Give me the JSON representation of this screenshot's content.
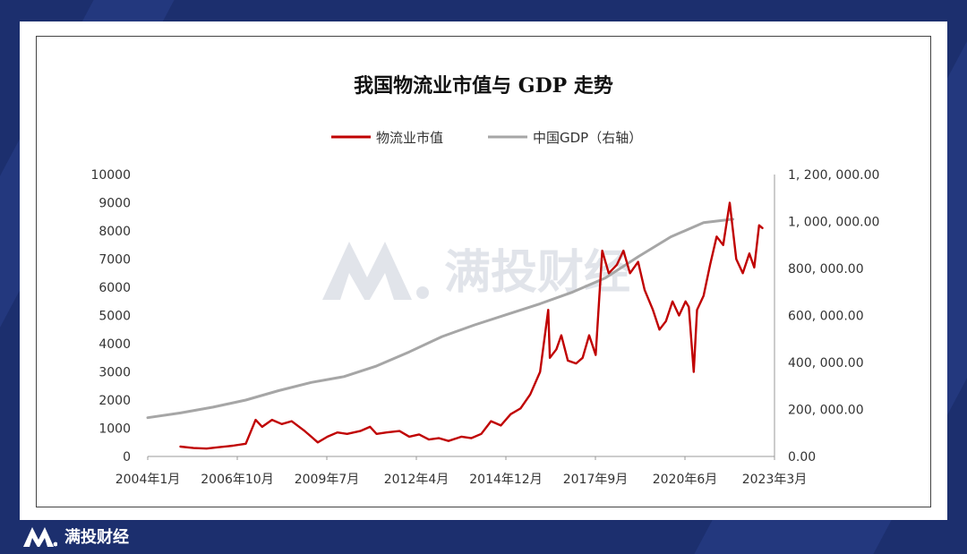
{
  "watermark": {
    "brand": "满投财经"
  },
  "footer": {
    "brand": "满投财经"
  },
  "chart_data": {
    "type": "line",
    "title": "我国物流业市值与 GDP 走势",
    "legend": {
      "placement": "top-center"
    },
    "x_tick_labels": [
      "2004年1月",
      "2006年10月",
      "2009年7月",
      "2012年4月",
      "2014年12月",
      "2017年9月",
      "2020年6月",
      "2023年3月"
    ],
    "x_range": [
      2004.0,
      2023.17
    ],
    "y_left": {
      "range": [
        0,
        10000
      ],
      "tick_labels": [
        "0",
        "1000",
        "2000",
        "3000",
        "4000",
        "5000",
        "6000",
        "7000",
        "8000",
        "9000",
        "10000"
      ]
    },
    "y_right": {
      "range": [
        0,
        1200000
      ],
      "tick_labels": [
        "0.00",
        "200, 000.00",
        "400, 000.00",
        "600, 000.00",
        "800, 000.00",
        "1, 000, 000.00",
        "1, 200, 000.00"
      ]
    },
    "grid": false,
    "series": [
      {
        "name": "物流业市值",
        "axis": "left",
        "color": "#c00000",
        "points": [
          [
            2005.0,
            350
          ],
          [
            2005.4,
            300
          ],
          [
            2005.8,
            280
          ],
          [
            2006.2,
            330
          ],
          [
            2006.6,
            380
          ],
          [
            2007.0,
            450
          ],
          [
            2007.3,
            1300
          ],
          [
            2007.5,
            1050
          ],
          [
            2007.8,
            1300
          ],
          [
            2008.1,
            1150
          ],
          [
            2008.4,
            1250
          ],
          [
            2008.8,
            900
          ],
          [
            2009.0,
            700
          ],
          [
            2009.2,
            500
          ],
          [
            2009.5,
            700
          ],
          [
            2009.8,
            850
          ],
          [
            2010.1,
            800
          ],
          [
            2010.5,
            900
          ],
          [
            2010.8,
            1050
          ],
          [
            2011.0,
            800
          ],
          [
            2011.3,
            850
          ],
          [
            2011.7,
            900
          ],
          [
            2012.0,
            700
          ],
          [
            2012.3,
            780
          ],
          [
            2012.6,
            600
          ],
          [
            2012.9,
            650
          ],
          [
            2013.2,
            550
          ],
          [
            2013.6,
            700
          ],
          [
            2013.9,
            650
          ],
          [
            2014.2,
            800
          ],
          [
            2014.5,
            1250
          ],
          [
            2014.8,
            1100
          ],
          [
            2015.1,
            1500
          ],
          [
            2015.4,
            1700
          ],
          [
            2015.7,
            2200
          ],
          [
            2016.0,
            3000
          ],
          [
            2016.25,
            5200
          ],
          [
            2016.3,
            3500
          ],
          [
            2016.5,
            3800
          ],
          [
            2016.65,
            4300
          ],
          [
            2016.85,
            3400
          ],
          [
            2017.1,
            3300
          ],
          [
            2017.3,
            3500
          ],
          [
            2017.5,
            4300
          ],
          [
            2017.7,
            3600
          ],
          [
            2017.9,
            7300
          ],
          [
            2018.1,
            6500
          ],
          [
            2018.35,
            6800
          ],
          [
            2018.55,
            7300
          ],
          [
            2018.75,
            6500
          ],
          [
            2019.0,
            6900
          ],
          [
            2019.2,
            5900
          ],
          [
            2019.45,
            5200
          ],
          [
            2019.65,
            4500
          ],
          [
            2019.85,
            4800
          ],
          [
            2020.05,
            5500
          ],
          [
            2020.25,
            5000
          ],
          [
            2020.45,
            5500
          ],
          [
            2020.55,
            5300
          ],
          [
            2020.7,
            3000
          ],
          [
            2020.8,
            5200
          ],
          [
            2021.0,
            5700
          ],
          [
            2021.2,
            6800
          ],
          [
            2021.4,
            7800
          ],
          [
            2021.6,
            7500
          ],
          [
            2021.8,
            9000
          ],
          [
            2022.0,
            7000
          ],
          [
            2022.2,
            6500
          ],
          [
            2022.4,
            7200
          ],
          [
            2022.55,
            6700
          ],
          [
            2022.7,
            8200
          ],
          [
            2022.8,
            8100
          ]
        ]
      },
      {
        "name": "中国GDP（右轴）",
        "axis": "right",
        "color": "#a6a6a6",
        "points": [
          [
            2004.0,
            165000
          ],
          [
            2005.0,
            185000
          ],
          [
            2006.0,
            210000
          ],
          [
            2007.0,
            240000
          ],
          [
            2008.0,
            280000
          ],
          [
            2009.0,
            315000
          ],
          [
            2010.0,
            340000
          ],
          [
            2011.0,
            385000
          ],
          [
            2012.0,
            445000
          ],
          [
            2013.0,
            510000
          ],
          [
            2014.0,
            560000
          ],
          [
            2015.0,
            605000
          ],
          [
            2016.0,
            650000
          ],
          [
            2017.0,
            700000
          ],
          [
            2018.0,
            760000
          ],
          [
            2019.0,
            850000
          ],
          [
            2020.0,
            935000
          ],
          [
            2021.0,
            995000
          ],
          [
            2021.9,
            1010000
          ]
        ]
      }
    ]
  }
}
